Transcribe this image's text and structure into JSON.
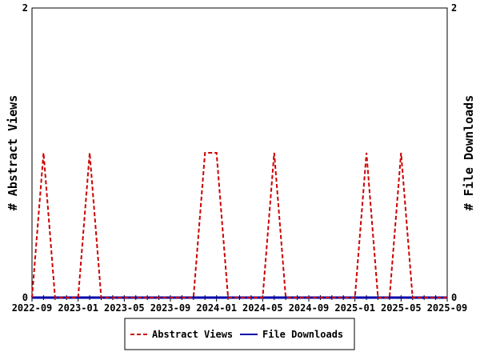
{
  "chart_data": {
    "type": "line",
    "title": "",
    "xlabel": "",
    "ylabel_left": "# Abstract Views",
    "ylabel_right": "# File Downloads",
    "ylim_left": [
      0,
      2
    ],
    "ylim_right": [
      0,
      2
    ],
    "yticks_left": [
      "0",
      "2"
    ],
    "yticks_right": [
      "0",
      "2"
    ],
    "x_start": "2022-09",
    "x_months": 36,
    "xtick_labels": [
      "2022-09",
      "2023-01",
      "2023-05",
      "2023-09",
      "2024-01",
      "2024-05",
      "2024-09",
      "2025-01",
      "2025-05",
      "2025-09"
    ],
    "legend_position": "bottom-center",
    "series": [
      {
        "name": "Abstract Views",
        "color": "#cc0000",
        "dashed": true,
        "values": [
          0,
          1,
          0,
          0,
          0,
          1,
          0,
          0,
          0,
          0,
          0,
          0,
          0,
          0,
          0,
          1,
          1,
          0,
          0,
          0,
          0,
          1,
          0,
          0,
          0,
          0,
          0,
          0,
          0,
          1,
          0,
          0,
          1,
          0,
          0,
          0,
          0
        ]
      },
      {
        "name": "File Downloads",
        "color": "#0000aa",
        "dashed": false,
        "values": [
          0,
          0,
          0,
          0,
          0,
          0,
          0,
          0,
          0,
          0,
          0,
          0,
          0,
          0,
          0,
          0,
          0,
          0,
          0,
          0,
          0,
          0,
          0,
          0,
          0,
          0,
          0,
          0,
          0,
          0,
          0,
          0,
          0,
          0,
          0,
          0,
          0
        ]
      }
    ]
  }
}
